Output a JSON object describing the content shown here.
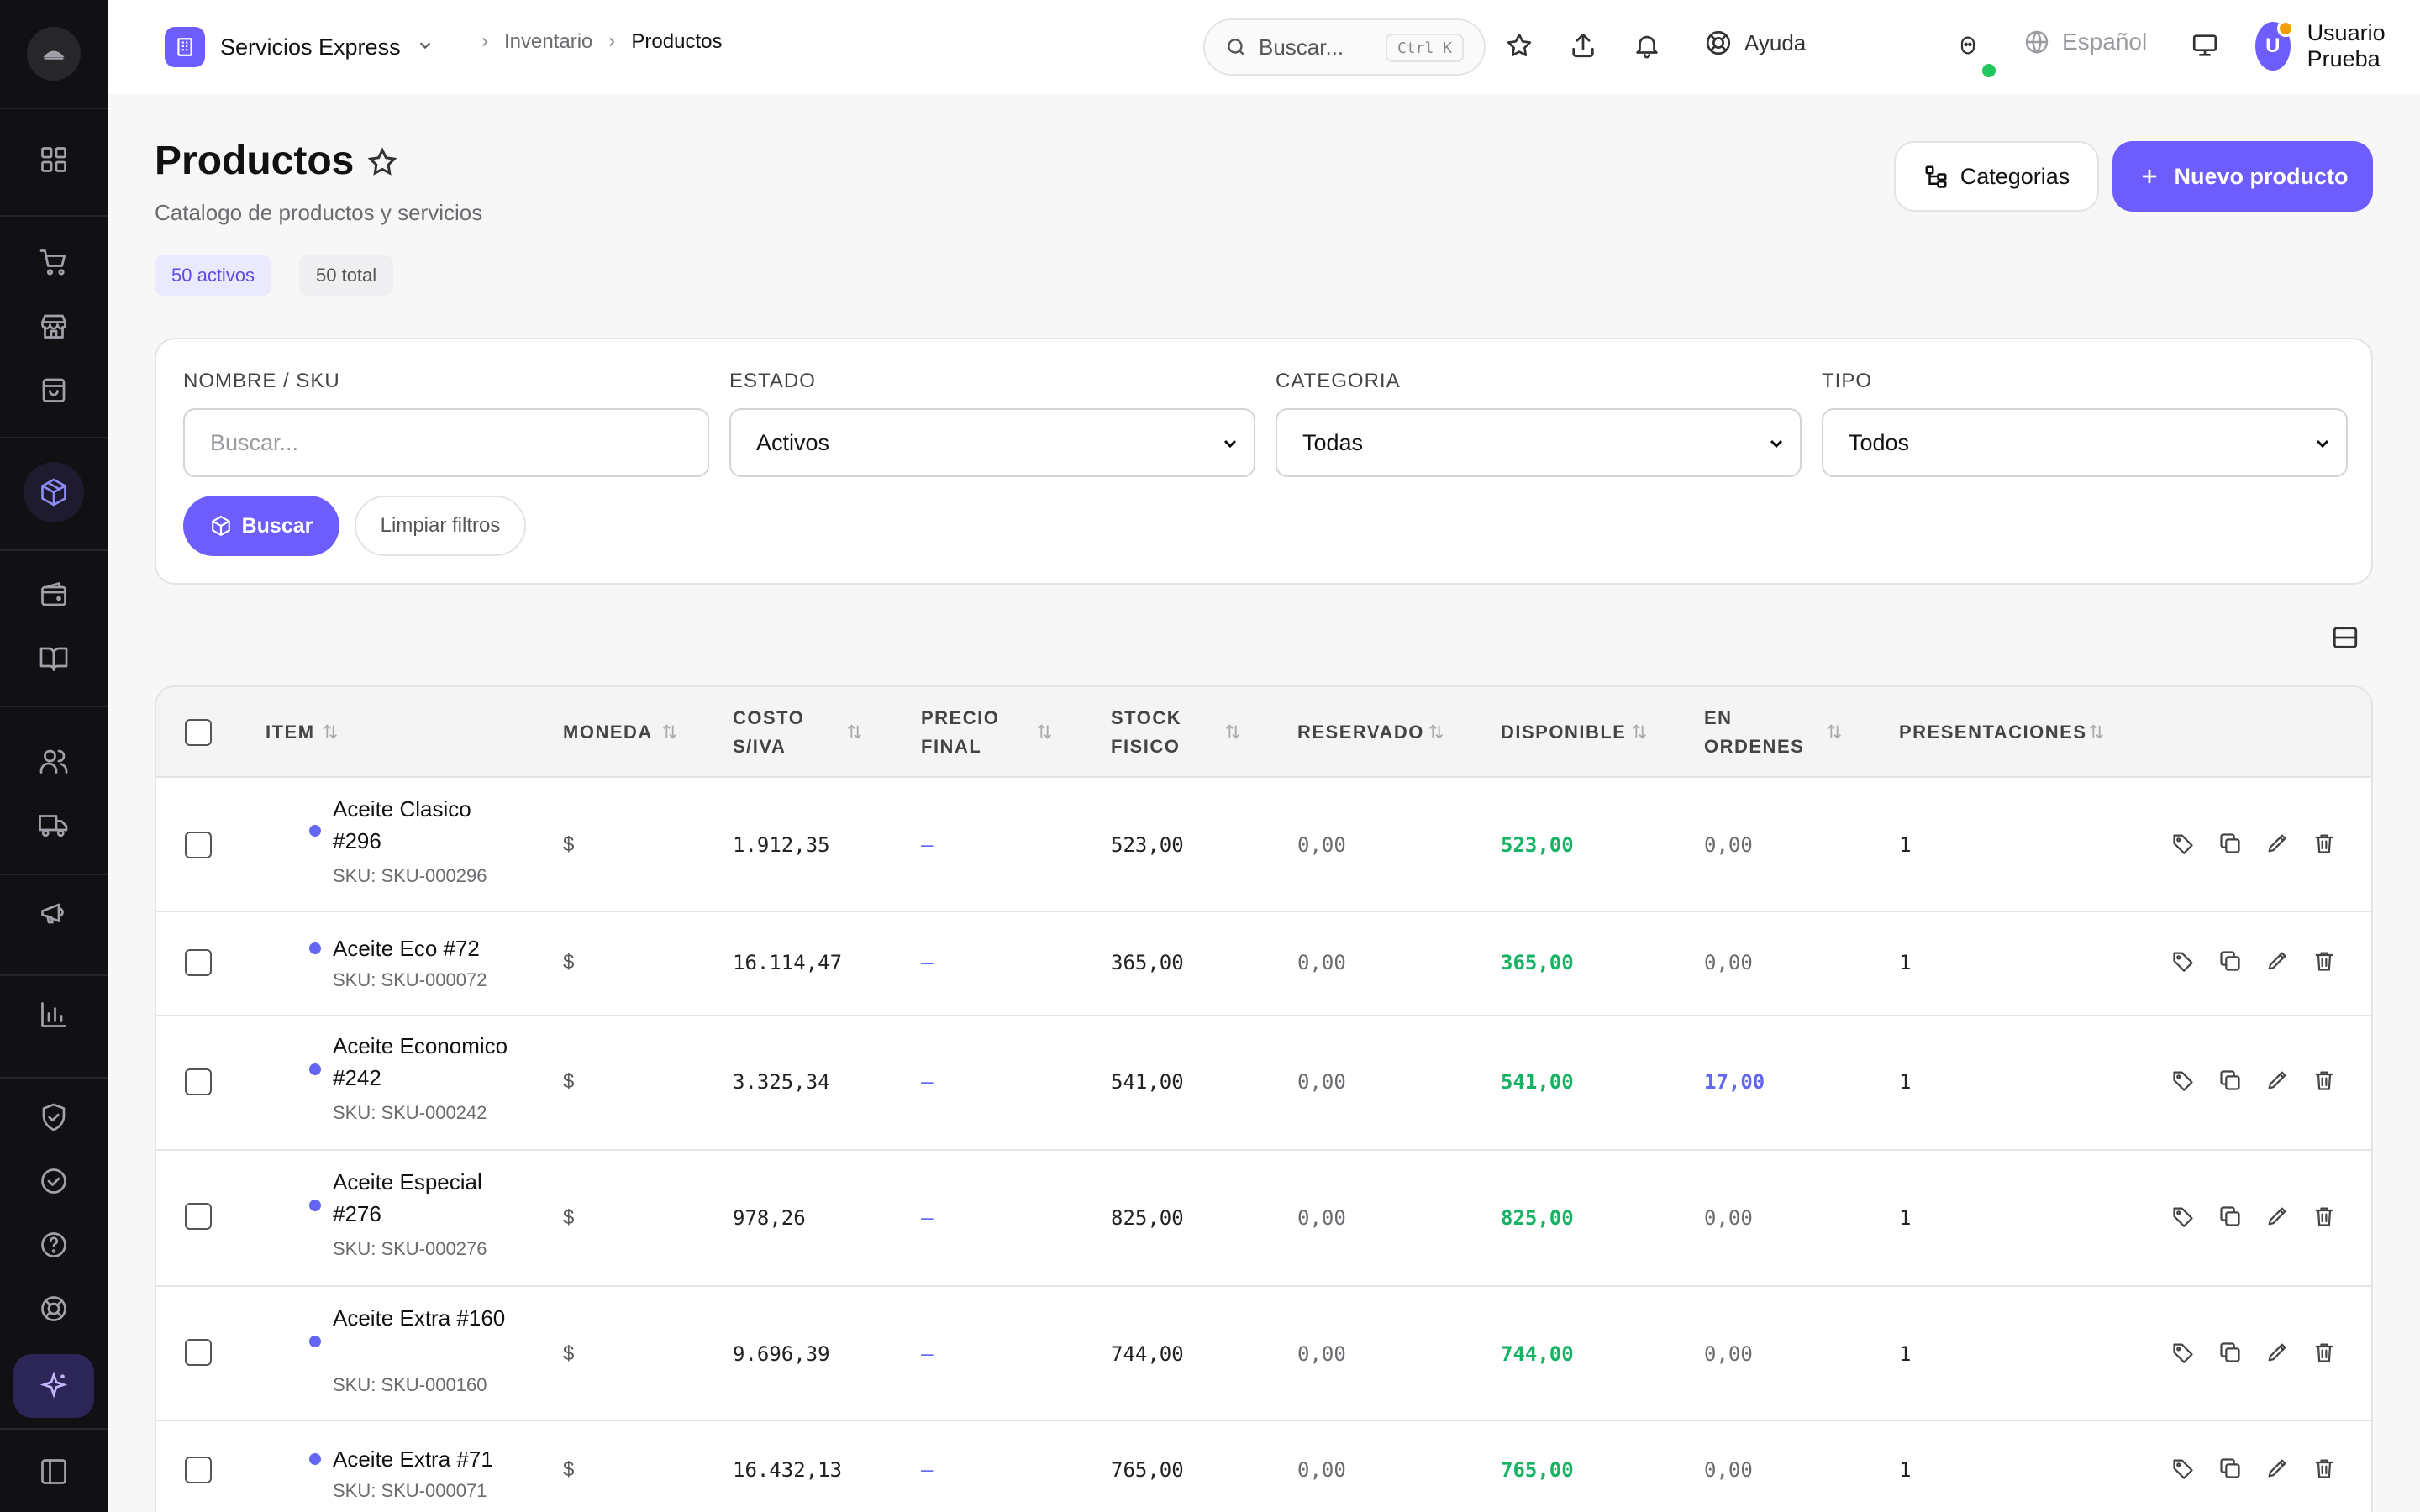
{
  "topbar": {
    "org_name": "Servicios Express",
    "breadcrumb": [
      "Inventario",
      "Productos"
    ],
    "search_placeholder": "Buscar...",
    "search_shortcut": "Ctrl K",
    "help_label": "Ayuda",
    "language": "Español",
    "user_initial": "U",
    "user_name": "Usuario Prueba"
  },
  "page": {
    "title": "Productos",
    "subtitle": "Catalogo de productos y servicios",
    "active_count": "50 activos",
    "total_count": "50 total",
    "categories_button": "Categorias",
    "new_button": "Nuevo producto"
  },
  "filters": {
    "name_label": "NOMBRE / SKU",
    "name_placeholder": "Buscar...",
    "status_label": "ESTADO",
    "status_value": "Activos",
    "category_label": "CATEGORIA",
    "category_value": "Todas",
    "type_label": "TIPO",
    "type_value": "Todos",
    "search_button": "Buscar",
    "clear_button": "Limpiar filtros"
  },
  "table": {
    "columns": {
      "item": "ITEM",
      "currency": "MONEDA",
      "cost_1": "COSTO",
      "cost_2": "S/IVA",
      "price_1": "PRECIO",
      "price_2": "FINAL",
      "stock_1": "STOCK",
      "stock_2": "FISICO",
      "reserved": "RESERVADO",
      "available": "DISPONIBLE",
      "orders_1": "EN",
      "orders_2": "ORDENES",
      "presentations": "PRESENTACIONES"
    },
    "rows": [
      {
        "name": "Aceite Clasico #296",
        "sku": "SKU: SKU-000296",
        "currency": "$",
        "cost": "1.912,35",
        "price": "–",
        "stock": "523,00",
        "reserved": "0,00",
        "available": "523,00",
        "orders": "0,00",
        "presentations": "1"
      },
      {
        "name": "Aceite Eco #72",
        "sku": "SKU: SKU-000072",
        "currency": "$",
        "cost": "16.114,47",
        "price": "–",
        "stock": "365,00",
        "reserved": "0,00",
        "available": "365,00",
        "orders": "0,00",
        "presentations": "1"
      },
      {
        "name": "Aceite Economico #242",
        "sku": "SKU: SKU-000242",
        "currency": "$",
        "cost": "3.325,34",
        "price": "–",
        "stock": "541,00",
        "reserved": "0,00",
        "available": "541,00",
        "orders": "17,00",
        "presentations": "1"
      },
      {
        "name": "Aceite Especial #276",
        "sku": "SKU: SKU-000276",
        "currency": "$",
        "cost": "978,26",
        "price": "–",
        "stock": "825,00",
        "reserved": "0,00",
        "available": "825,00",
        "orders": "0,00",
        "presentations": "1"
      },
      {
        "name": "Aceite Extra #160",
        "sku": "SKU: SKU-000160",
        "currency": "$",
        "cost": "9.696,39",
        "price": "–",
        "stock": "744,00",
        "reserved": "0,00",
        "available": "744,00",
        "orders": "0,00",
        "presentations": "1"
      },
      {
        "name": "Aceite Extra #71",
        "sku": "SKU: SKU-000071",
        "currency": "$",
        "cost": "16.432,13",
        "price": "–",
        "stock": "765,00",
        "reserved": "0,00",
        "available": "765,00",
        "orders": "0,00",
        "presentations": "1"
      }
    ]
  },
  "colors": {
    "accent": "#6d5dfc",
    "available_green": "#16b364",
    "orders_blue": "#6366f1",
    "sidebar_bg": "#111113"
  }
}
